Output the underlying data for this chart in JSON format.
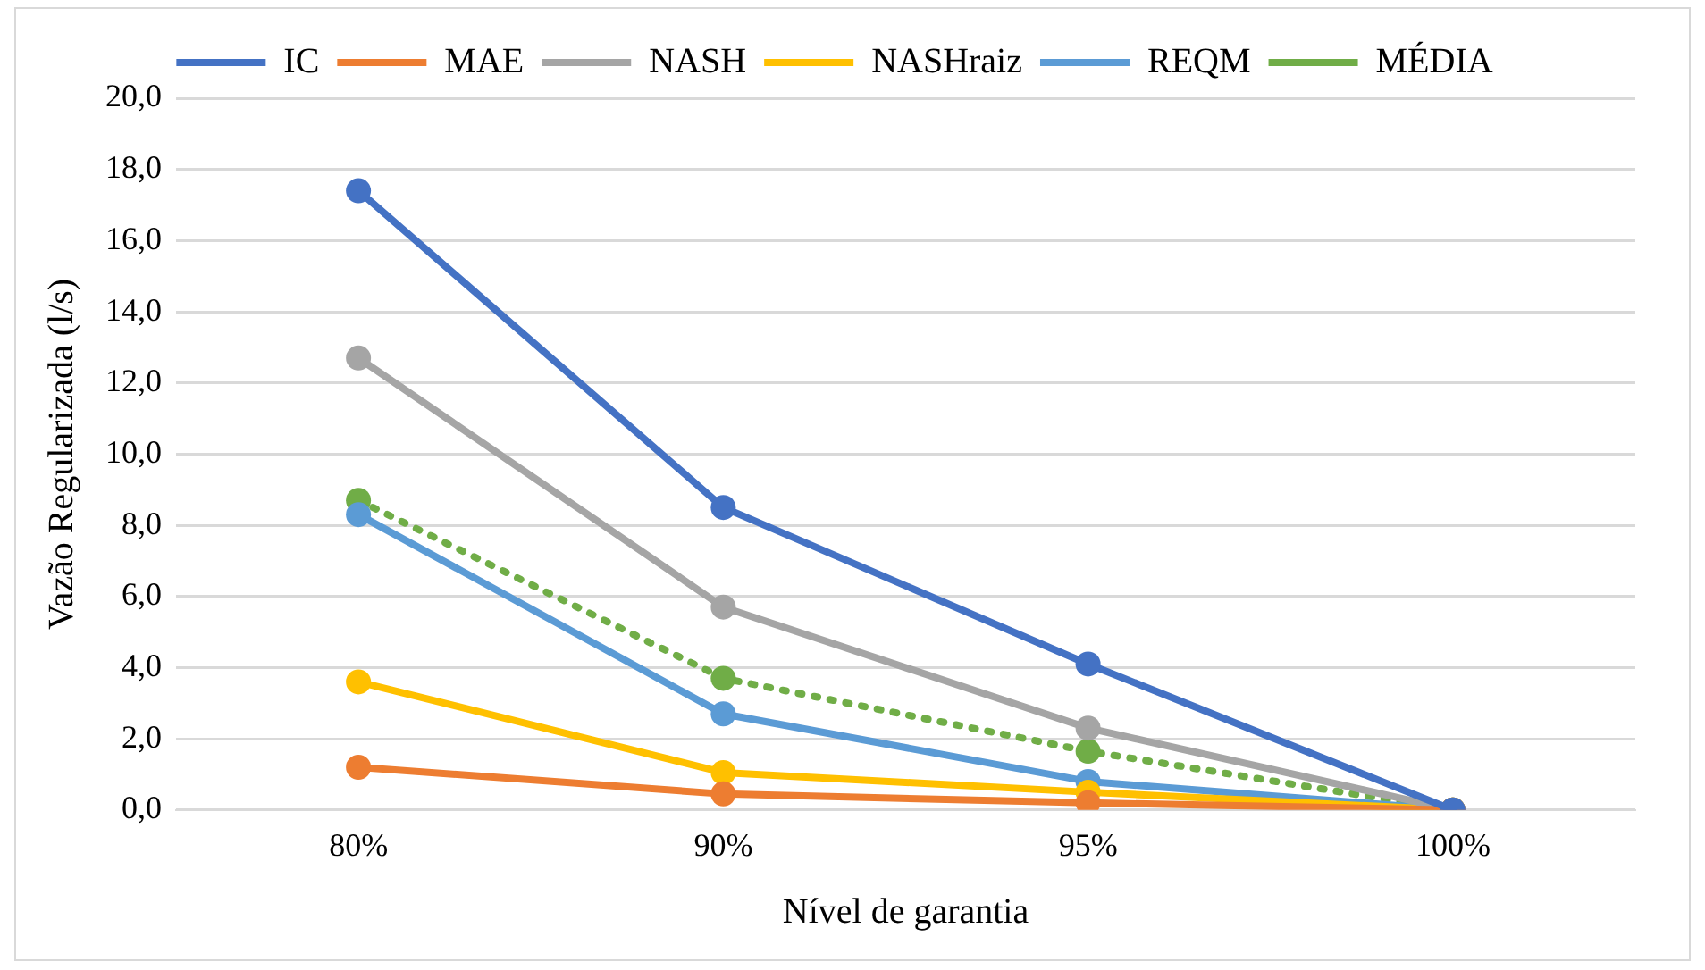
{
  "chart_data": {
    "type": "line",
    "xlabel": "Nível de garantia",
    "ylabel": "Vazão Regularizada (l/s)",
    "categories": [
      "80%",
      "90%",
      "95%",
      "100%"
    ],
    "series": [
      {
        "name": "IC",
        "color": "#4472c4",
        "values": [
          17.4,
          8.5,
          4.1,
          0
        ]
      },
      {
        "name": "MAE",
        "color": "#ed7d31",
        "values": [
          1.2,
          0.45,
          0.2,
          0
        ]
      },
      {
        "name": "NASH",
        "color": "#a5a5a5",
        "values": [
          12.7,
          5.7,
          2.3,
          0
        ]
      },
      {
        "name": "NASHraiz",
        "color": "#ffc000",
        "values": [
          3.6,
          1.05,
          0.5,
          0
        ]
      },
      {
        "name": "REQM",
        "color": "#5b9bd5",
        "values": [
          8.3,
          2.7,
          0.8,
          0
        ]
      },
      {
        "name": "MÉDIA",
        "color": "#70ad47",
        "values": [
          8.7,
          3.7,
          1.65,
          0
        ],
        "line_style": "dotted"
      }
    ],
    "ylim": [
      0,
      20
    ],
    "yticks": [
      {
        "value": 0,
        "label": "0,0"
      },
      {
        "value": 2,
        "label": "2,0"
      },
      {
        "value": 4,
        "label": "4,0"
      },
      {
        "value": 6,
        "label": "6,0"
      },
      {
        "value": 8,
        "label": "8,0"
      },
      {
        "value": 10,
        "label": "10,0"
      },
      {
        "value": 12,
        "label": "12,0"
      },
      {
        "value": 14,
        "label": "14,0"
      },
      {
        "value": 16,
        "label": "16,0"
      },
      {
        "value": 18,
        "label": "18,0"
      },
      {
        "value": 20,
        "label": "20,0"
      }
    ],
    "grid": "y",
    "legend": "top",
    "marker": "circle",
    "line_style": "solid"
  }
}
